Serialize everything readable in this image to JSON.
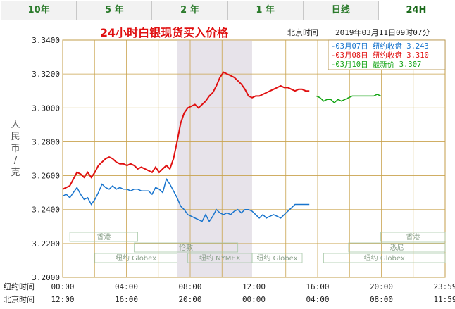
{
  "tabs": [
    {
      "label": "10年",
      "active": false
    },
    {
      "label": "5 年",
      "active": false
    },
    {
      "label": "2 年",
      "active": false
    },
    {
      "label": "1 年",
      "active": false
    },
    {
      "label": "日线",
      "active": false
    },
    {
      "label": "24H",
      "active": true
    }
  ],
  "header": {
    "title": "24小时白银现货买入价格",
    "timestamp_label": "北京时间",
    "timestamp": "2019年03月11日09时07分"
  },
  "chart_data": {
    "type": "line",
    "ylabel": "人民币/克",
    "ylim": [
      3.2,
      3.34
    ],
    "yticks": [
      "3.3400",
      "3.3200",
      "3.3000",
      "3.2800",
      "3.2600",
      "3.2400",
      "3.2200",
      "3.2000"
    ],
    "x_row1_label": "纽约时间",
    "x_row1": [
      "00:00",
      "04:00",
      "08:00",
      "12:00",
      "16:00",
      "20:00",
      "23:59"
    ],
    "x_row2_label": "北京时间",
    "x_row2": [
      "12:00",
      "16:00",
      "20:00",
      "00:00",
      "04:00",
      "08:00",
      "11:59"
    ],
    "series": [
      {
        "name": "03月07日 纽约收盘 3.243",
        "color": "#1874cd",
        "points": [
          [
            0,
            3.248
          ],
          [
            1,
            3.249
          ],
          [
            2,
            3.247
          ],
          [
            3,
            3.25
          ],
          [
            4,
            3.253
          ],
          [
            5,
            3.249
          ],
          [
            6,
            3.246
          ],
          [
            7,
            3.247
          ],
          [
            8,
            3.243
          ],
          [
            9,
            3.246
          ],
          [
            10,
            3.25
          ],
          [
            11,
            3.255
          ],
          [
            12,
            3.253
          ],
          [
            13,
            3.252
          ],
          [
            14,
            3.254
          ],
          [
            15,
            3.252
          ],
          [
            16,
            3.253
          ],
          [
            17,
            3.252
          ],
          [
            18,
            3.252
          ],
          [
            19,
            3.251
          ],
          [
            20,
            3.252
          ],
          [
            21,
            3.252
          ],
          [
            22,
            3.251
          ],
          [
            23,
            3.251
          ],
          [
            24,
            3.251
          ],
          [
            25,
            3.249
          ],
          [
            26,
            3.253
          ],
          [
            27,
            3.252
          ],
          [
            28,
            3.25
          ],
          [
            29,
            3.258
          ],
          [
            30,
            3.255
          ],
          [
            31,
            3.251
          ],
          [
            32,
            3.247
          ],
          [
            33,
            3.242
          ],
          [
            34,
            3.24
          ],
          [
            35,
            3.237
          ],
          [
            36,
            3.236
          ],
          [
            37,
            3.235
          ],
          [
            38,
            3.234
          ],
          [
            39,
            3.233
          ],
          [
            40,
            3.237
          ],
          [
            41,
            3.233
          ],
          [
            42,
            3.236
          ],
          [
            43,
            3.24
          ],
          [
            44,
            3.238
          ],
          [
            45,
            3.237
          ],
          [
            46,
            3.238
          ],
          [
            47,
            3.237
          ],
          [
            48,
            3.239
          ],
          [
            49,
            3.24
          ],
          [
            50,
            3.238
          ],
          [
            51,
            3.24
          ],
          [
            52,
            3.24
          ],
          [
            53,
            3.239
          ],
          [
            54,
            3.237
          ],
          [
            55,
            3.235
          ],
          [
            56,
            3.237
          ],
          [
            57,
            3.235
          ],
          [
            58,
            3.236
          ],
          [
            59,
            3.237
          ],
          [
            60,
            3.236
          ],
          [
            61,
            3.235
          ],
          [
            62,
            3.237
          ],
          [
            63,
            3.239
          ],
          [
            64,
            3.241
          ],
          [
            65,
            3.243
          ],
          [
            66,
            3.243
          ],
          [
            67,
            3.243
          ],
          [
            68,
            3.243
          ],
          [
            69,
            3.243
          ]
        ]
      },
      {
        "name": "03月08日 纽约收盘 3.310",
        "color": "#e01010",
        "points": [
          [
            0,
            3.252
          ],
          [
            1,
            3.253
          ],
          [
            2,
            3.254
          ],
          [
            3,
            3.258
          ],
          [
            4,
            3.262
          ],
          [
            5,
            3.261
          ],
          [
            6,
            3.259
          ],
          [
            7,
            3.262
          ],
          [
            8,
            3.259
          ],
          [
            9,
            3.262
          ],
          [
            10,
            3.266
          ],
          [
            11,
            3.268
          ],
          [
            12,
            3.27
          ],
          [
            13,
            3.271
          ],
          [
            14,
            3.27
          ],
          [
            15,
            3.268
          ],
          [
            16,
            3.267
          ],
          [
            17,
            3.267
          ],
          [
            18,
            3.266
          ],
          [
            19,
            3.267
          ],
          [
            20,
            3.266
          ],
          [
            21,
            3.264
          ],
          [
            22,
            3.265
          ],
          [
            23,
            3.264
          ],
          [
            24,
            3.263
          ],
          [
            25,
            3.262
          ],
          [
            26,
            3.265
          ],
          [
            27,
            3.262
          ],
          [
            28,
            3.264
          ],
          [
            29,
            3.266
          ],
          [
            30,
            3.264
          ],
          [
            31,
            3.27
          ],
          [
            32,
            3.28
          ],
          [
            33,
            3.291
          ],
          [
            34,
            3.297
          ],
          [
            35,
            3.3
          ],
          [
            36,
            3.301
          ],
          [
            37,
            3.302
          ],
          [
            38,
            3.3
          ],
          [
            39,
            3.302
          ],
          [
            40,
            3.304
          ],
          [
            41,
            3.307
          ],
          [
            42,
            3.309
          ],
          [
            43,
            3.313
          ],
          [
            44,
            3.318
          ],
          [
            45,
            3.321
          ],
          [
            46,
            3.32
          ],
          [
            47,
            3.319
          ],
          [
            48,
            3.318
          ],
          [
            49,
            3.316
          ],
          [
            50,
            3.314
          ],
          [
            51,
            3.311
          ],
          [
            52,
            3.307
          ],
          [
            53,
            3.306
          ],
          [
            54,
            3.307
          ],
          [
            55,
            3.307
          ],
          [
            56,
            3.308
          ],
          [
            57,
            3.309
          ],
          [
            58,
            3.31
          ],
          [
            59,
            3.311
          ],
          [
            60,
            3.312
          ],
          [
            61,
            3.313
          ],
          [
            62,
            3.312
          ],
          [
            63,
            3.312
          ],
          [
            64,
            3.311
          ],
          [
            65,
            3.31
          ],
          [
            66,
            3.311
          ],
          [
            67,
            3.311
          ],
          [
            68,
            3.31
          ],
          [
            69,
            3.31
          ]
        ]
      },
      {
        "name": "03月10日 最新价 3.307",
        "color": "#13a413",
        "points": [
          [
            71,
            3.307
          ],
          [
            72,
            3.306
          ],
          [
            73,
            3.304
          ],
          [
            74,
            3.305
          ],
          [
            75,
            3.305
          ],
          [
            76,
            3.303
          ],
          [
            77,
            3.305
          ],
          [
            78,
            3.304
          ],
          [
            79,
            3.305
          ],
          [
            80,
            3.306
          ],
          [
            81,
            3.307
          ],
          [
            82,
            3.307
          ],
          [
            83,
            3.307
          ],
          [
            84,
            3.307
          ],
          [
            85,
            3.307
          ],
          [
            86,
            3.307
          ],
          [
            87,
            3.307
          ],
          [
            88,
            3.308
          ],
          [
            89,
            3.307
          ]
        ]
      }
    ],
    "x_max": 107,
    "highlight_range": [
      32,
      53
    ],
    "sessions": [
      {
        "label": "香港",
        "start": 2,
        "end": 21,
        "row": 0
      },
      {
        "label": "伦敦",
        "start": 20,
        "end": 49,
        "row": 1
      },
      {
        "label": "纽约 Globex",
        "start": 9,
        "end": 32,
        "row": 2
      },
      {
        "label": "纽约 NYMEX",
        "start": 35,
        "end": 53,
        "row": 2
      },
      {
        "label": "纽约 Globex",
        "start": 53,
        "end": 67,
        "row": 2
      },
      {
        "label": "香港",
        "start": 89,
        "end": 107,
        "row": 0
      },
      {
        "label": "悉尼",
        "start": 80,
        "end": 107,
        "row": 1
      },
      {
        "label": "纽约 Globex",
        "start": 73,
        "end": 107,
        "row": 2
      }
    ]
  }
}
